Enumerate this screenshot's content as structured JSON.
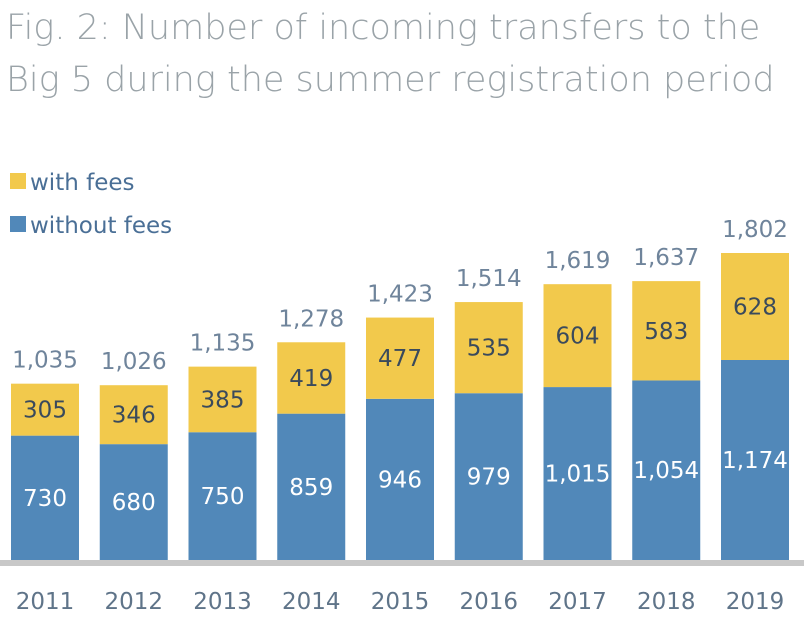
{
  "chart_data": {
    "type": "bar",
    "stacked": true,
    "title_lines": [
      "Fig. 2: Number of incoming transfers to the",
      "Big 5 during the summer registration period"
    ],
    "categories": [
      "2011",
      "2012",
      "2013",
      "2014",
      "2015",
      "2016",
      "2017",
      "2018",
      "2019"
    ],
    "series": [
      {
        "name": "without fees",
        "values": [
          730,
          680,
          750,
          859,
          946,
          979,
          1015,
          1054,
          1174
        ],
        "labels": [
          "730",
          "680",
          "750",
          "859",
          "946",
          "979",
          "1,015",
          "1,054",
          "1,174"
        ]
      },
      {
        "name": "with fees",
        "values": [
          305,
          346,
          385,
          419,
          477,
          535,
          604,
          583,
          628
        ],
        "labels": [
          "305",
          "346",
          "385",
          "419",
          "477",
          "535",
          "604",
          "583",
          "628"
        ]
      }
    ],
    "totals": [
      1035,
      1026,
      1135,
      1278,
      1423,
      1514,
      1619,
      1637,
      1802
    ],
    "total_labels": [
      "1,035",
      "1,026",
      "1,135",
      "1,278",
      "1,423",
      "1,514",
      "1,619",
      "1,637",
      "1,802"
    ],
    "ylim": [
      0,
      2000
    ],
    "grid": false,
    "legend_position": "top-left",
    "colors": {
      "with fees": "#f2c94c",
      "without fees": "#5188b9",
      "axis": "#c8c8c8"
    }
  }
}
